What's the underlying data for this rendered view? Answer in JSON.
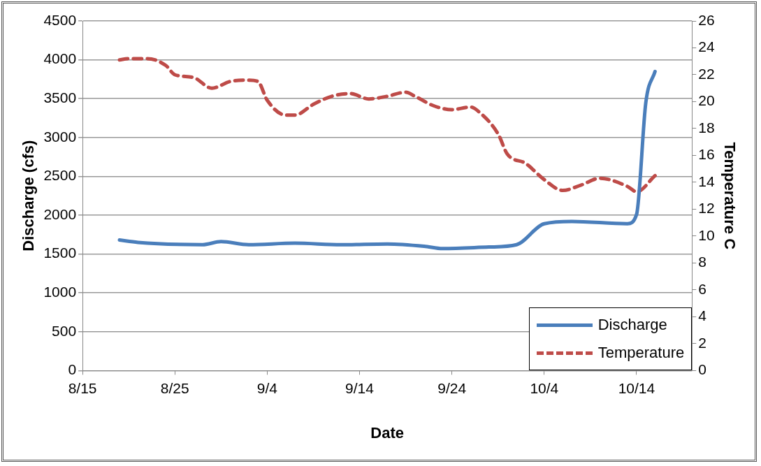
{
  "chart_data": {
    "type": "line",
    "xlabel": "Date",
    "ylabel": "Discharge (cfs)",
    "y2label": "Temperature C",
    "xlim": [
      "--08-15",
      "--10-20"
    ],
    "xticks": [
      {
        "value": "--08-15",
        "label": "8/15"
      },
      {
        "value": "--08-25",
        "label": "8/25"
      },
      {
        "value": "--09-04",
        "label": "9/4"
      },
      {
        "value": "--09-14",
        "label": "9/14"
      },
      {
        "value": "--09-24",
        "label": "9/24"
      },
      {
        "value": "--10-04",
        "label": "10/4"
      },
      {
        "value": "--10-14",
        "label": "10/14"
      }
    ],
    "ylim": [
      0,
      4500
    ],
    "yticks": [
      0,
      500,
      1000,
      1500,
      2000,
      2500,
      3000,
      3500,
      4000,
      4500
    ],
    "y2lim": [
      0,
      26
    ],
    "y2ticks": [
      0,
      2,
      4,
      6,
      8,
      10,
      12,
      14,
      16,
      18,
      20,
      22,
      24,
      26
    ],
    "grid": "y",
    "legend": "bottom right",
    "marker": "none",
    "series": [
      {
        "name": "Discharge",
        "color": "#4a7ebb",
        "line_style": "solid",
        "x": [
          "--08-19",
          "--08-21",
          "--08-28",
          "--08-30",
          "--09-02",
          "--09-07",
          "--09-12",
          "--09-17",
          "--09-21",
          "--09-23",
          "--09-28",
          "--10-01",
          "--10-04",
          "--10-07",
          "--10-13",
          "--10-14",
          "--10-15",
          "--10-16"
        ],
        "values": [
          1680,
          1650,
          1620,
          1660,
          1620,
          1640,
          1620,
          1630,
          1600,
          1570,
          1590,
          1620,
          1890,
          1920,
          1890,
          2010,
          3450,
          3850
        ]
      },
      {
        "name": "Temperature",
        "color": "#be4b48",
        "line_style": "dashed",
        "axis": "y2",
        "x": [
          "--08-19",
          "--08-20",
          "--08-22",
          "--08-24",
          "--08-25",
          "--08-27",
          "--08-29",
          "--08-31",
          "--09-02",
          "--09-03",
          "--09-04",
          "--09-06",
          "--09-07",
          "--09-09",
          "--09-11",
          "--09-13",
          "--09-15",
          "--09-17",
          "--09-19",
          "--09-20",
          "--09-22",
          "--09-24",
          "--09-26",
          "--09-27",
          "--09-29",
          "--09-30",
          "--10-02",
          "--10-04",
          "--10-06",
          "--10-08",
          "--10-10",
          "--10-13",
          "--10-14",
          "--10-16"
        ],
        "values": [
          23.1,
          23.2,
          23.2,
          22.7,
          22.0,
          21.8,
          21.0,
          21.5,
          21.6,
          21.5,
          20.1,
          19.0,
          19.0,
          19.8,
          20.4,
          20.6,
          20.2,
          20.4,
          20.7,
          20.4,
          19.7,
          19.4,
          19.6,
          19.2,
          17.6,
          16.1,
          15.4,
          14.2,
          13.4,
          13.8,
          14.3,
          13.7,
          13.3,
          14.5
        ]
      }
    ]
  }
}
